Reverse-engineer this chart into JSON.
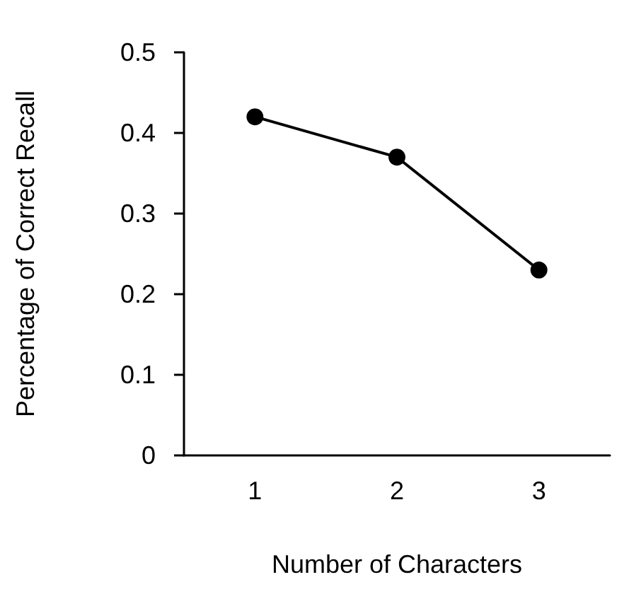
{
  "chart_data": {
    "type": "line",
    "xlabel": "Number of Characters",
    "ylabel": "Percentage of Correct Recall",
    "categories": [
      "1",
      "2",
      "3"
    ],
    "series": [
      {
        "color": "#000000",
        "values": [
          0.42,
          0.37,
          0.23
        ]
      }
    ],
    "ylim": [
      0,
      0.5
    ],
    "yticks": [
      0,
      0.1,
      0.2,
      0.3,
      0.4,
      0.5
    ],
    "grid": false,
    "marker": "circle",
    "line_style": "solid"
  }
}
